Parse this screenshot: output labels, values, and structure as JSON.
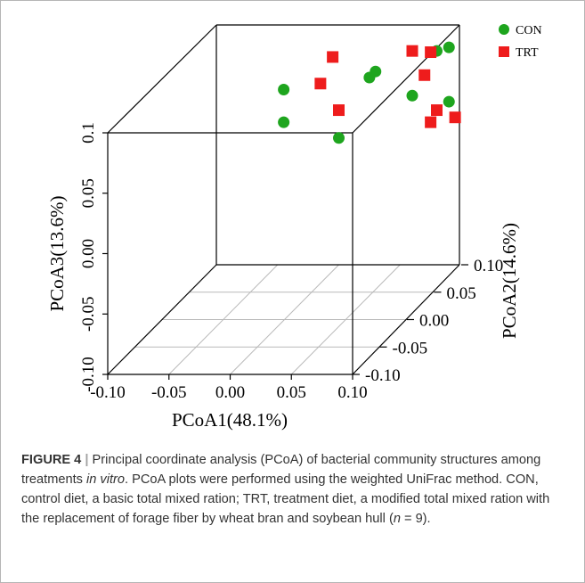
{
  "chart_data": {
    "type": "scatter",
    "projection": "3d",
    "axes": {
      "x": {
        "label": "PCoA1(48.1%)",
        "range": [
          -0.1,
          0.1
        ],
        "ticks": [
          "-0.10",
          "-0.05",
          "0.00",
          "0.05",
          "0.10"
        ]
      },
      "y": {
        "label": "PCoA2(14.6%)",
        "range": [
          -0.1,
          0.1
        ],
        "ticks": [
          "-0.10",
          "-0.05",
          "0.00",
          "0.05",
          "0.10"
        ]
      },
      "z": {
        "label": "PCoA3(13.6%)",
        "range": [
          -0.1,
          0.1
        ],
        "ticks": [
          "-0.10",
          "-0.05",
          "0.00",
          "0.05",
          "0.1"
        ]
      }
    },
    "floor_grid": true,
    "legend_position": "top-right",
    "series": [
      {
        "name": "CON",
        "marker": "circle",
        "color": "#1ea51e",
        "points": [
          {
            "x": -0.045,
            "y": 0.1,
            "z": 0.045
          },
          {
            "x": -0.045,
            "y": 0.1,
            "z": 0.018
          },
          {
            "x": 0.0,
            "y": 0.1,
            "z": 0.005
          },
          {
            "x": 0.025,
            "y": 0.1,
            "z": 0.055
          },
          {
            "x": 0.03,
            "y": 0.1,
            "z": 0.06
          },
          {
            "x": 0.06,
            "y": 0.1,
            "z": 0.04
          },
          {
            "x": 0.08,
            "y": 0.1,
            "z": 0.077
          },
          {
            "x": 0.09,
            "y": 0.1,
            "z": 0.08
          },
          {
            "x": 0.09,
            "y": 0.1,
            "z": 0.035
          }
        ]
      },
      {
        "name": "TRT",
        "marker": "square",
        "color": "#ee1c1c",
        "points": [
          {
            "x": -0.015,
            "y": 0.1,
            "z": 0.05
          },
          {
            "x": -0.005,
            "y": 0.1,
            "z": 0.072
          },
          {
            "x": 0.0,
            "y": 0.1,
            "z": 0.028
          },
          {
            "x": 0.06,
            "y": 0.1,
            "z": 0.077
          },
          {
            "x": 0.075,
            "y": 0.1,
            "z": 0.076
          },
          {
            "x": 0.07,
            "y": 0.1,
            "z": 0.057
          },
          {
            "x": 0.08,
            "y": 0.1,
            "z": 0.028
          },
          {
            "x": 0.075,
            "y": 0.1,
            "z": 0.018
          },
          {
            "x": 0.095,
            "y": 0.1,
            "z": 0.022
          }
        ]
      }
    ]
  },
  "caption": {
    "figure_label": "FIGURE 4",
    "separator": "|",
    "part1": "Principal coordinate analysis (PCoA) of bacterial community structures among treatments ",
    "italic1": "in vitro",
    "part2": ". PCoA plots were performed using the weighted UniFrac method. CON, control diet, a basic total mixed ration; TRT, treatment diet, a modified total mixed ration with the replacement of forage fiber by wheat bran and soybean hull (",
    "italic2": "n",
    "part3": " = 9)."
  }
}
